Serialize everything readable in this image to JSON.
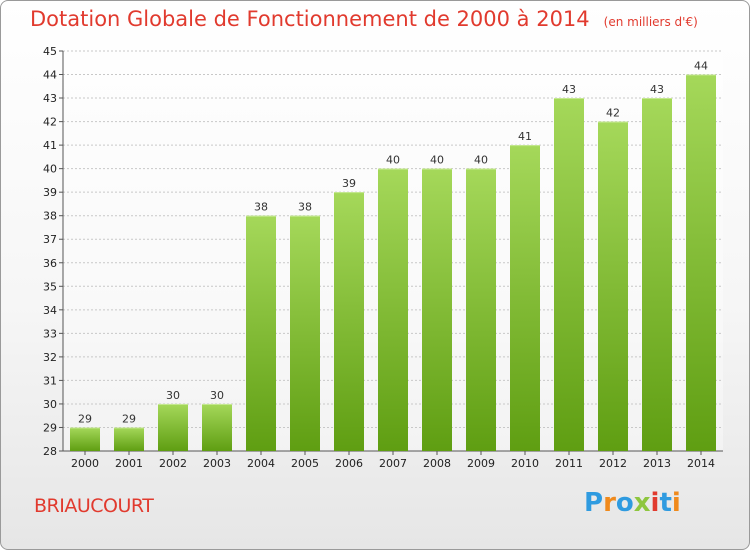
{
  "header": {
    "title": "Dotation Globale de Fonctionnement de 2000 à 2014",
    "unit": "(en milliers d'€)"
  },
  "commune": "BRIAUCOURT",
  "logo": {
    "text": "Proxiti",
    "letters": [
      {
        "ch": "P",
        "color": "#2f9be0"
      },
      {
        "ch": "r",
        "color": "#f08a1c"
      },
      {
        "ch": "o",
        "color": "#2f9be0"
      },
      {
        "ch": "x",
        "color": "#8ec63f"
      },
      {
        "ch": "i",
        "color": "#e13a2e"
      },
      {
        "ch": "t",
        "color": "#2f9be0"
      },
      {
        "ch": "i",
        "color": "#f08a1c"
      }
    ]
  },
  "colors": {
    "bar_light": "#a5d85a",
    "bar_dark": "#5f9e12",
    "grid": "#c8c8c8",
    "title": "#e13a2e"
  },
  "chart_data": {
    "type": "bar",
    "title": "Dotation Globale de Fonctionnement de 2000 à 2014",
    "xlabel": "",
    "ylabel": "(en milliers d'€)",
    "categories": [
      "2000",
      "2001",
      "2002",
      "2003",
      "2004",
      "2005",
      "2006",
      "2007",
      "2008",
      "2009",
      "2010",
      "2011",
      "2012",
      "2013",
      "2014"
    ],
    "values": [
      29,
      29,
      30,
      30,
      38,
      38,
      39,
      40,
      40,
      40,
      41,
      43,
      42,
      43,
      44
    ],
    "ylim": [
      28,
      45
    ],
    "yticks": [
      28,
      29,
      30,
      31,
      32,
      33,
      34,
      35,
      36,
      37,
      38,
      39,
      40,
      41,
      42,
      43,
      44,
      45
    ],
    "grid": true
  }
}
